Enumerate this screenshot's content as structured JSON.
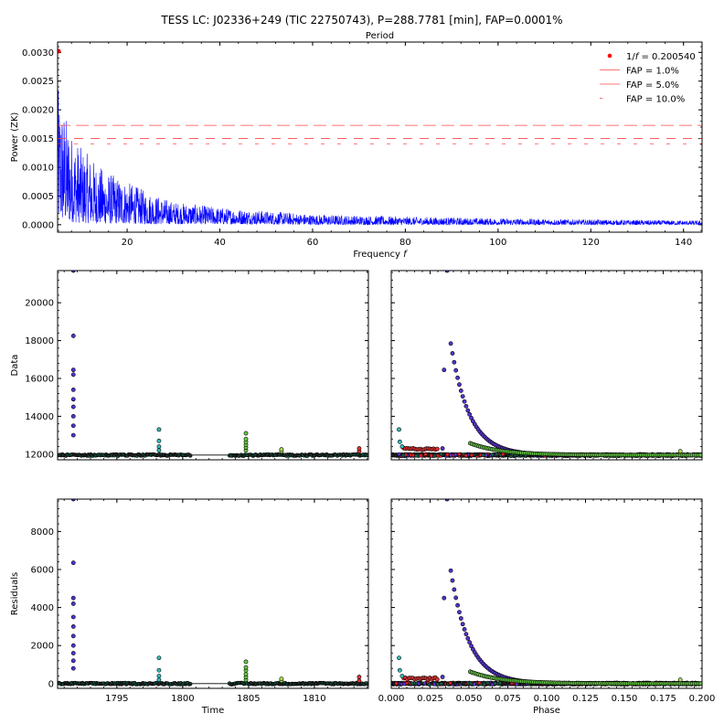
{
  "figure": {
    "title": "TESS LC: J02336+249 (TIC 22750743), P=288.7781 [min], FAP=0.0001%"
  },
  "chart_data": [
    {
      "id": "periodogram",
      "type": "line",
      "title": "",
      "top_label": "Period",
      "xlabel": "Frequency f",
      "ylabel": "Power (ZK)",
      "xlim": [
        5,
        144
      ],
      "ylim": [
        -0.00013,
        0.00318
      ],
      "xticks": [
        20,
        40,
        60,
        80,
        100,
        120,
        140
      ],
      "yticks": [
        0.0,
        0.0005,
        0.001,
        0.0015,
        0.002,
        0.0025,
        0.003
      ],
      "ytick_labels": [
        "0.0000",
        "0.0005",
        "0.0010",
        "0.0015",
        "0.0020",
        "0.0025",
        "0.0030"
      ],
      "peak": {
        "x": 5.0,
        "y": 0.00302
      },
      "fap_levels": [
        {
          "label": "FAP = 1.0%",
          "value": 0.00173,
          "dash": "14,6"
        },
        {
          "label": "FAP = 5.0%",
          "value": 0.0015,
          "dash": "10,8"
        },
        {
          "label": "FAP = 10.0%",
          "value": 0.00141,
          "dash": "4,14"
        }
      ],
      "legend": {
        "placement": "top-right",
        "peak_label": "1/f = 0.200540",
        "entries": [
          "FAP = 1.0%",
          "FAP = 5.0%",
          "FAP = 10.0%"
        ]
      },
      "envelope": [
        {
          "x": 5,
          "lo": 8e-05,
          "hi": 0.0024
        },
        {
          "x": 8,
          "lo": 5e-05,
          "hi": 0.0016
        },
        {
          "x": 10,
          "lo": 3e-05,
          "hi": 0.00135
        },
        {
          "x": 15,
          "lo": 2e-05,
          "hi": 0.00095
        },
        {
          "x": 20,
          "lo": 2e-05,
          "hi": 0.00075
        },
        {
          "x": 25,
          "lo": 1e-05,
          "hi": 0.00055
        },
        {
          "x": 30,
          "lo": 1e-05,
          "hi": 0.0004
        },
        {
          "x": 40,
          "lo": 1e-05,
          "hi": 0.0003
        },
        {
          "x": 50,
          "lo": 1e-05,
          "hi": 0.00024
        },
        {
          "x": 60,
          "lo": 0.0,
          "hi": 0.00018
        },
        {
          "x": 80,
          "lo": 0.0,
          "hi": 0.00014
        },
        {
          "x": 100,
          "lo": 0.0,
          "hi": 0.00011
        },
        {
          "x": 120,
          "lo": 0.0,
          "hi": 9e-05
        },
        {
          "x": 144,
          "lo": 0.0,
          "hi": 7e-05
        }
      ],
      "series_color": "#0000ff",
      "fap_color": "#ff4444"
    },
    {
      "id": "data-time",
      "type": "scatter",
      "xlabel": "",
      "ylabel": "Data",
      "xlim": [
        1790.5,
        1814.1
      ],
      "ylim": [
        11700,
        21700
      ],
      "xticks": [
        1795,
        1800,
        1805,
        1810
      ],
      "show_xtick_labels": false,
      "yticks": [
        12000,
        14000,
        16000,
        18000,
        20000
      ],
      "baseline": 11950,
      "gaps": [
        [
          1800.6,
          1803.5
        ]
      ],
      "flares": [
        {
          "x": 1791.7,
          "values": [
            13000,
            13500,
            14000,
            14500,
            14900,
            15400,
            16200,
            16450,
            18250,
            21700
          ],
          "color": "#5533cc"
        },
        {
          "x": 1798.2,
          "values": [
            12200,
            12400,
            12700,
            13300
          ],
          "color": "#33bbbb"
        },
        {
          "x": 1804.8,
          "values": [
            12200,
            12350,
            12500,
            12650,
            12800,
            13100
          ],
          "color": "#66cc44"
        },
        {
          "x": 1807.5,
          "values": [
            12150,
            12250
          ],
          "color": "#aadd55"
        },
        {
          "x": 1813.4,
          "values": [
            12150,
            12300
          ],
          "color": "#dd3333"
        }
      ]
    },
    {
      "id": "data-phase",
      "type": "scatter",
      "xlabel": "",
      "ylabel": "",
      "xlim": [
        0.0,
        0.2
      ],
      "ylim": [
        11700,
        21700
      ],
      "xticks": [
        0.0,
        0.025,
        0.05,
        0.075,
        0.1,
        0.125,
        0.15,
        0.175,
        0.2
      ],
      "show_xtick_labels": false,
      "yticks": [
        12000,
        14000,
        16000,
        18000,
        20000
      ],
      "show_ytick_labels": false,
      "baseline": 11950,
      "decay_curves": [
        {
          "x0": 0.0375,
          "peak": 18250,
          "tau": 0.012,
          "color": "#5533cc",
          "start": 0.035
        },
        {
          "x0": 0.05,
          "peak": 12600,
          "tau": 0.02,
          "color": "#66cc44",
          "start": 0.042
        }
      ],
      "extra_points": [
        {
          "x": 0.005,
          "y": 13300,
          "color": "#33bbbb"
        },
        {
          "x": 0.0055,
          "y": 12650,
          "color": "#33bbbb"
        },
        {
          "x": 0.007,
          "y": 12400,
          "color": "#33bbbb"
        },
        {
          "x": 0.034,
          "y": 16450,
          "color": "#5533cc"
        },
        {
          "x": 0.036,
          "y": 21700,
          "color": "#5533cc"
        },
        {
          "x": 0.033,
          "y": 12300,
          "color": "#5533cc"
        },
        {
          "x": 0.186,
          "y": 12150,
          "color": "#aadd55"
        }
      ],
      "red_cluster": {
        "from": 0.008,
        "to": 0.03,
        "y": 12250,
        "color": "#dd3333"
      }
    },
    {
      "id": "residuals-time",
      "type": "scatter",
      "xlabel": "Time",
      "ylabel": "Residuals",
      "xlim": [
        1790.5,
        1814.1
      ],
      "ylim": [
        -250,
        9700
      ],
      "xticks": [
        1795,
        1800,
        1805,
        1810
      ],
      "show_xtick_labels": true,
      "yticks": [
        0,
        2000,
        4000,
        6000,
        8000
      ],
      "baseline": 0,
      "gaps": [
        [
          1800.6,
          1803.5
        ]
      ],
      "flares": [
        {
          "x": 1791.7,
          "values": [
            800,
            1200,
            1600,
            2000,
            2500,
            3000,
            3500,
            4200,
            4500,
            6350,
            9700
          ],
          "color": "#5533cc"
        },
        {
          "x": 1798.2,
          "values": [
            200,
            400,
            700,
            1350
          ],
          "color": "#33bbbb"
        },
        {
          "x": 1804.8,
          "values": [
            200,
            350,
            500,
            700,
            850,
            1150
          ],
          "color": "#66cc44"
        },
        {
          "x": 1807.5,
          "values": [
            150,
            250
          ],
          "color": "#aadd55"
        },
        {
          "x": 1813.4,
          "values": [
            150,
            350
          ],
          "color": "#dd3333"
        }
      ]
    },
    {
      "id": "residuals-phase",
      "type": "scatter",
      "xlabel": "Phase",
      "ylabel": "",
      "xlim": [
        0.0,
        0.2
      ],
      "ylim": [
        -250,
        9700
      ],
      "xticks": [
        0.0,
        0.025,
        0.05,
        0.075,
        0.1,
        0.125,
        0.15,
        0.175,
        0.2
      ],
      "xtick_labels": [
        "0.000",
        "0.025",
        "0.050",
        "0.075",
        "0.100",
        "0.125",
        "0.150",
        "0.175",
        "0.200"
      ],
      "show_xtick_labels": true,
      "yticks": [
        0,
        2000,
        4000,
        6000,
        8000
      ],
      "show_ytick_labels": false,
      "baseline": 0,
      "decay_curves": [
        {
          "x0": 0.0375,
          "peak": 6350,
          "tau": 0.012,
          "color": "#5533cc",
          "start": 0.035
        },
        {
          "x0": 0.05,
          "peak": 650,
          "tau": 0.02,
          "color": "#66cc44",
          "start": 0.042
        }
      ],
      "extra_points": [
        {
          "x": 0.005,
          "y": 1350,
          "color": "#33bbbb"
        },
        {
          "x": 0.0055,
          "y": 700,
          "color": "#33bbbb"
        },
        {
          "x": 0.007,
          "y": 400,
          "color": "#33bbbb"
        },
        {
          "x": 0.034,
          "y": 4500,
          "color": "#5533cc"
        },
        {
          "x": 0.036,
          "y": 9700,
          "color": "#5533cc"
        },
        {
          "x": 0.033,
          "y": 350,
          "color": "#5533cc"
        },
        {
          "x": 0.186,
          "y": 200,
          "color": "#aadd55"
        }
      ],
      "red_cluster": {
        "from": 0.008,
        "to": 0.03,
        "y": 250,
        "color": "#dd3333"
      }
    }
  ]
}
